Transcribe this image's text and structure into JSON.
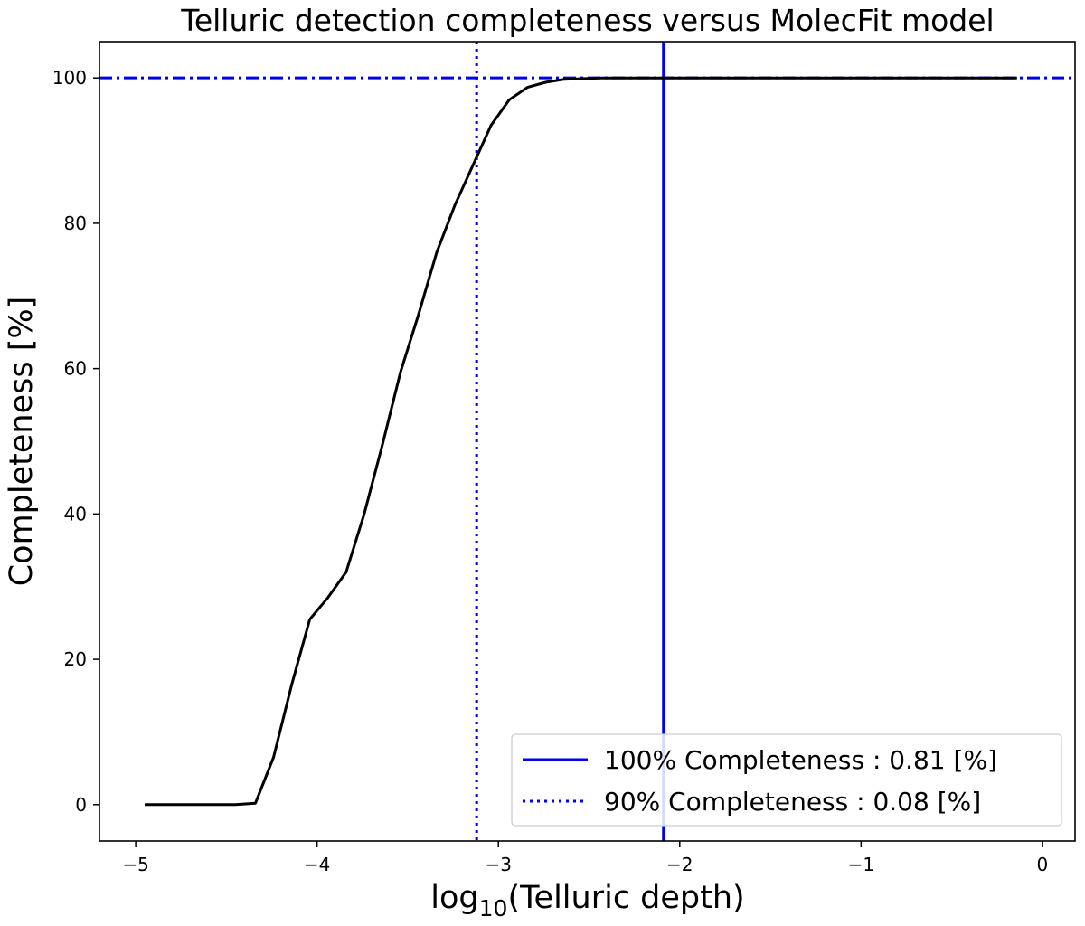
{
  "chart_data": {
    "type": "line",
    "title": "Telluric detection completeness versus MolecFit model",
    "xlabel_main": "log",
    "xlabel_sub": "10",
    "xlabel_rest": "(Telluric depth)",
    "ylabel": "Completeness [%]",
    "xlim": [
      -5.2,
      0.18
    ],
    "ylim": [
      -5,
      105
    ],
    "xticks": [
      -5,
      -4,
      -3,
      -2,
      -1,
      0
    ],
    "xtick_labels": [
      "−5",
      "−4",
      "−3",
      "−2",
      "−1",
      "0"
    ],
    "yticks": [
      0,
      20,
      40,
      60,
      80,
      100
    ],
    "ytick_labels": [
      "0",
      "20",
      "40",
      "60",
      "80",
      "100"
    ],
    "grid": false,
    "series": [
      {
        "color": "#000000",
        "x": [
          -4.95,
          -4.85,
          -4.75,
          -4.65,
          -4.55,
          -4.45,
          -4.34,
          -4.24,
          -4.14,
          -4.04,
          -3.94,
          -3.84,
          -3.74,
          -3.64,
          -3.54,
          -3.44,
          -3.34,
          -3.24,
          -3.14,
          -3.04,
          -2.94,
          -2.84,
          -2.74,
          -2.64,
          -2.54,
          -2.44,
          -2.34,
          -2.24,
          -2.14,
          -2.04,
          -1.94,
          -1.84,
          -1.74,
          -1.64,
          -1.54,
          -1.44,
          -1.34,
          -1.24,
          -1.14,
          -1.04,
          -0.94,
          -0.84,
          -0.74,
          -0.64,
          -0.54,
          -0.44,
          -0.34,
          -0.24,
          -0.14
        ],
        "y": [
          0,
          0,
          0,
          0,
          0,
          0,
          0.2,
          6.5,
          16.5,
          25.5,
          28.5,
          32,
          40,
          49.5,
          59.5,
          67.5,
          76,
          82.5,
          88,
          93.5,
          97,
          98.7,
          99.4,
          99.8,
          99.9,
          100,
          100,
          100,
          100,
          100,
          100,
          100,
          100,
          100,
          100,
          100,
          100,
          100,
          100,
          100,
          100,
          100,
          100,
          100,
          100,
          100,
          100,
          100,
          100
        ]
      }
    ],
    "reference_lines": [
      {
        "orientation": "horizontal",
        "value": 100,
        "style": "dashdot",
        "color": "#0000ee"
      },
      {
        "orientation": "vertical",
        "value": -2.09,
        "style": "solid",
        "color": "#0000ee"
      },
      {
        "orientation": "vertical",
        "value": -3.12,
        "style": "dotted",
        "color": "#0000ee"
      }
    ],
    "legend": {
      "position": "lower-right",
      "entries": [
        {
          "label": "100% Completeness : 0.81 [%]",
          "style": "solid",
          "color": "#0000ee"
        },
        {
          "label": "90% Completeness : 0.08 [%]",
          "style": "dotted",
          "color": "#0000ee"
        }
      ]
    }
  }
}
